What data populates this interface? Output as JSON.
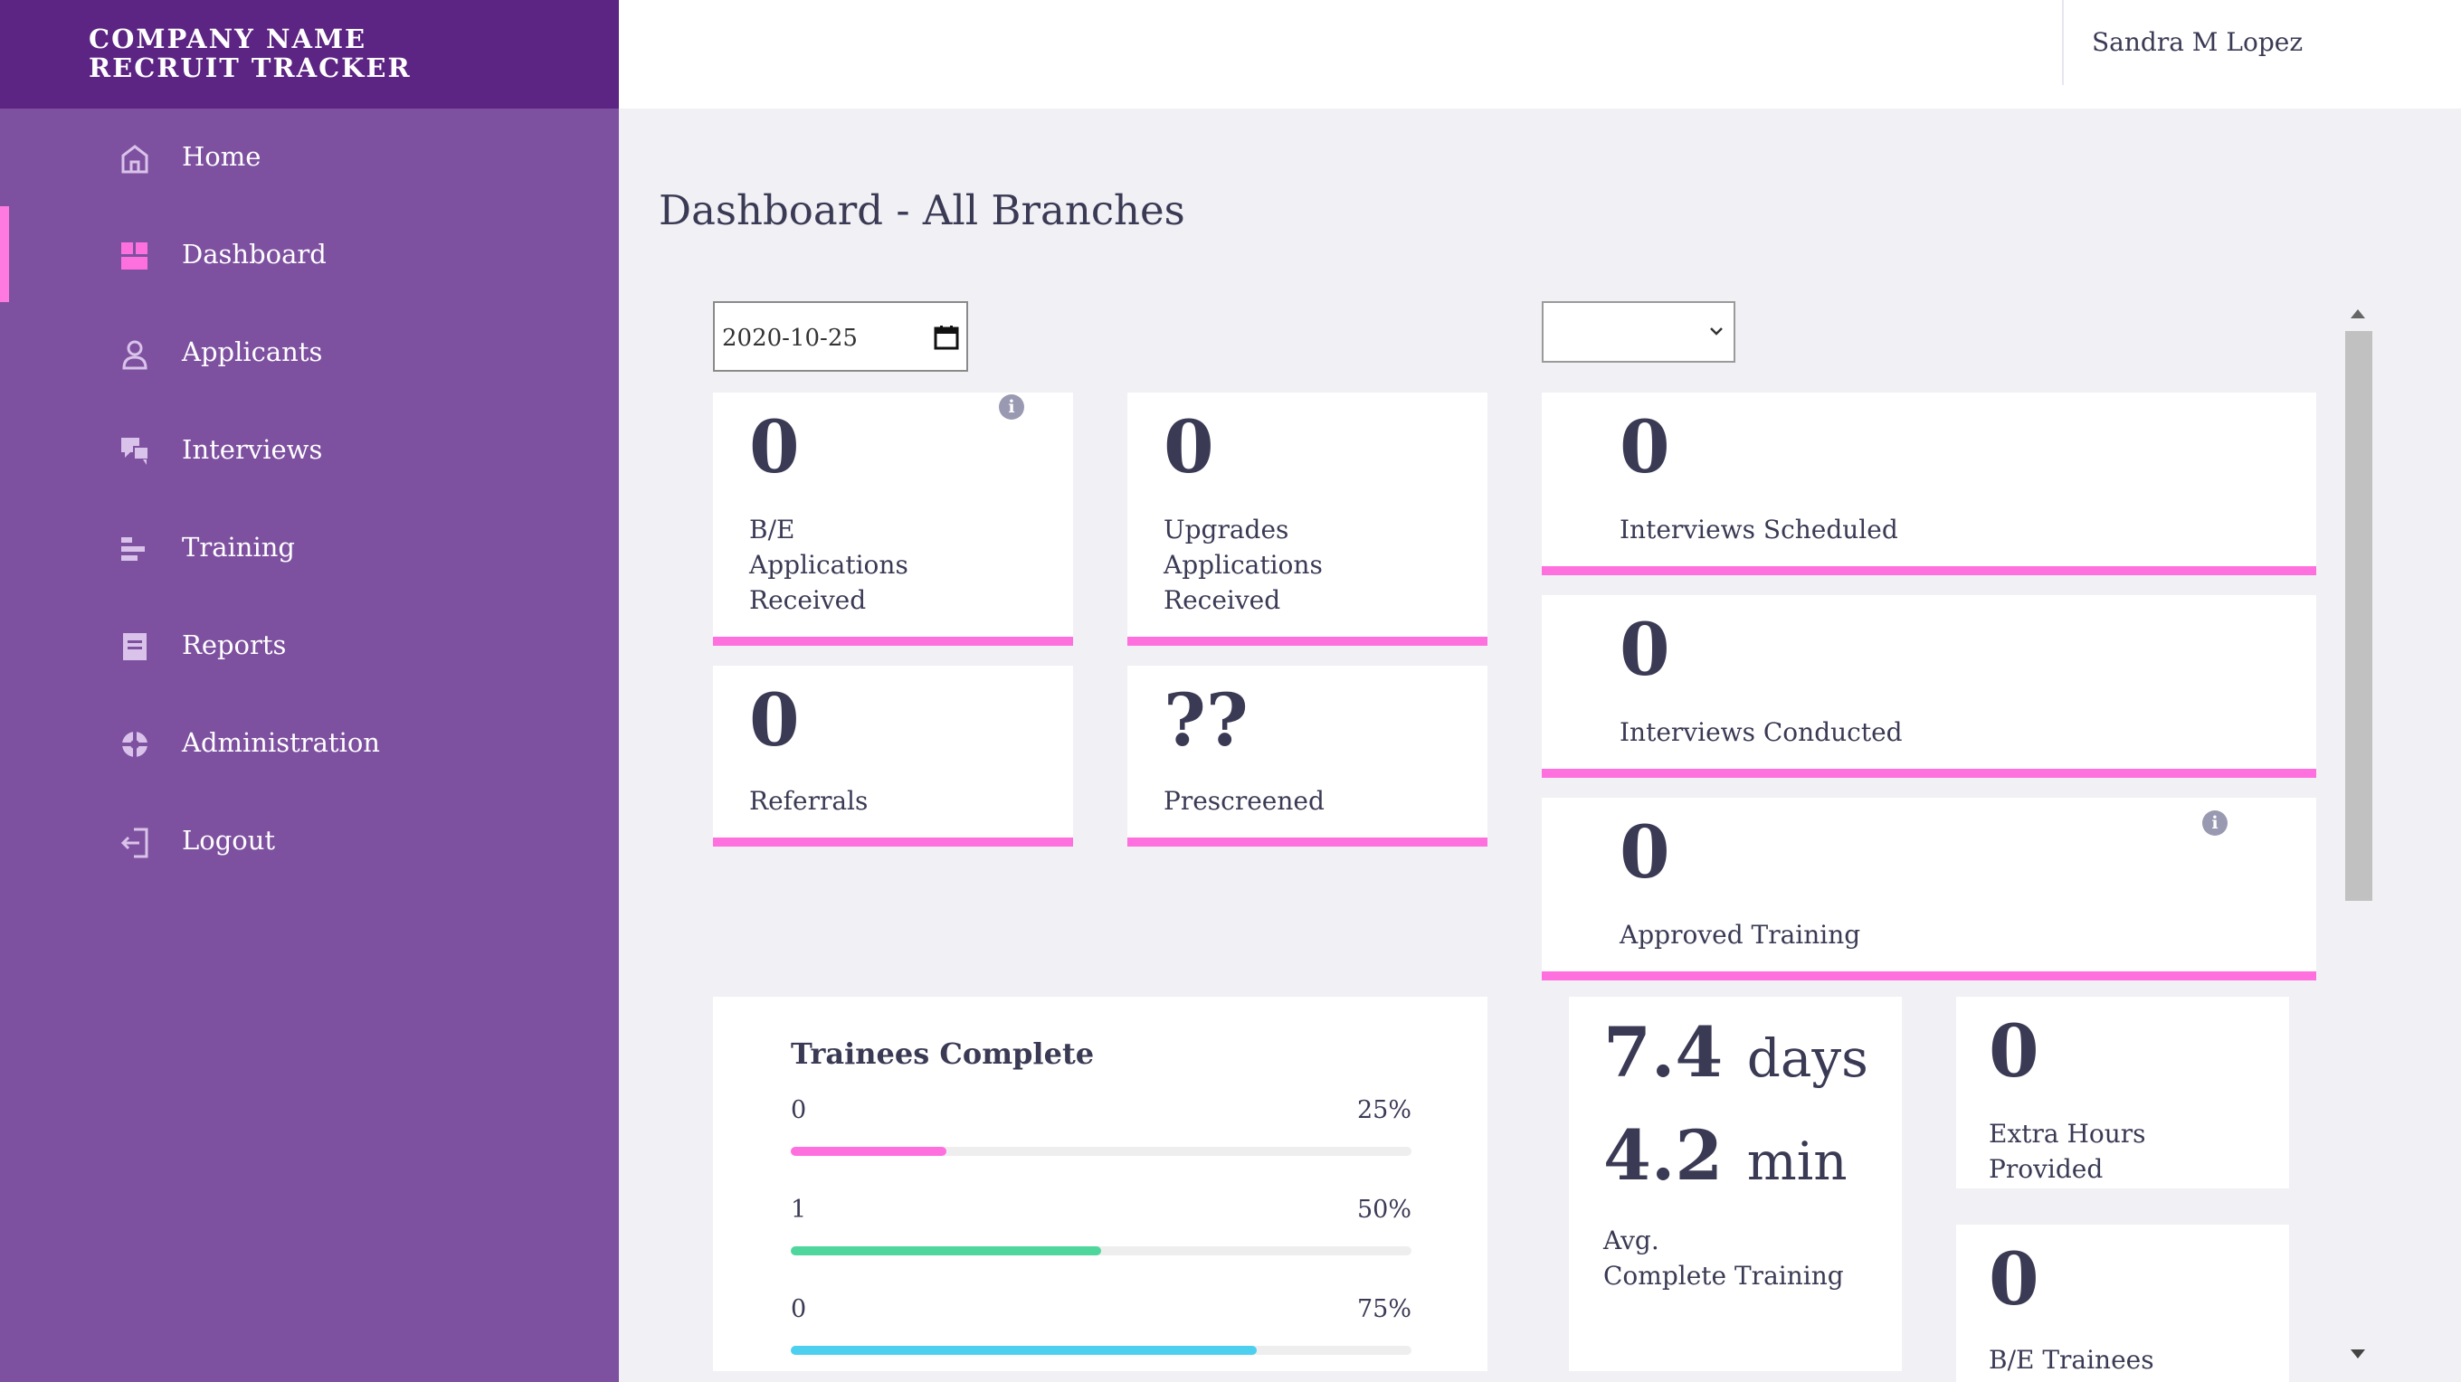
{
  "brand": {
    "line1": "COMPANY NAME",
    "line2": "RECRUIT TRACKER"
  },
  "sidebar": {
    "items": [
      {
        "label": "Home",
        "icon": "home-icon"
      },
      {
        "label": "Dashboard",
        "icon": "dashboard-icon",
        "active": true
      },
      {
        "label": "Applicants",
        "icon": "user-icon"
      },
      {
        "label": "Interviews",
        "icon": "chat-icon"
      },
      {
        "label": "Training",
        "icon": "bars-icon"
      },
      {
        "label": "Reports",
        "icon": "report-icon"
      },
      {
        "label": "Administration",
        "icon": "globe-icon"
      },
      {
        "label": "Logout",
        "icon": "logout-icon"
      }
    ]
  },
  "header": {
    "user_name": "Sandra M Lopez"
  },
  "main": {
    "title": "Dashboard - All Branches",
    "date_value": "2020-10-25",
    "branch_select_value": "",
    "cards": {
      "be_applications": {
        "value": "0",
        "label_lines": [
          "B/E",
          "Applications",
          "Received"
        ]
      },
      "upgrades_applications": {
        "value": "0",
        "label_lines": [
          "Upgrades",
          "Applications",
          "Received"
        ]
      },
      "referrals": {
        "value": "0",
        "label": "Referrals"
      },
      "prescreened": {
        "value": "??",
        "label": "Prescreened"
      },
      "interviews_scheduled": {
        "value": "0",
        "label": "Interviews Scheduled"
      },
      "interviews_conducted": {
        "value": "0",
        "label": "Interviews Conducted"
      },
      "approved_training": {
        "value": "0",
        "label": "Approved Training"
      },
      "extra_hours": {
        "value": "0",
        "label_lines": [
          "Extra Hours",
          "Provided"
        ]
      },
      "be_trainees": {
        "value": "0",
        "label": "B/E Trainees"
      }
    },
    "trainees_complete": {
      "title": "Trainees Complete",
      "rows": [
        {
          "count": "0",
          "pct_label": "25%",
          "pct": 0.25,
          "color": "#ff70df"
        },
        {
          "count": "1",
          "pct_label": "50%",
          "pct": 0.5,
          "color": "#4fd69c"
        },
        {
          "count": "0",
          "pct_label": "75%",
          "pct": 0.75,
          "color": "#4dd0ef"
        }
      ]
    },
    "avg_training": {
      "days_value": "7.4",
      "days_unit": "days",
      "min_value": "4.2",
      "min_unit": "min",
      "label_lines": [
        "Avg.",
        "Complete Training"
      ]
    }
  },
  "colors": {
    "accent_pink": "#ff70df",
    "sidebar_bg": "#7e51a0",
    "brand_bg": "#5c2483"
  }
}
